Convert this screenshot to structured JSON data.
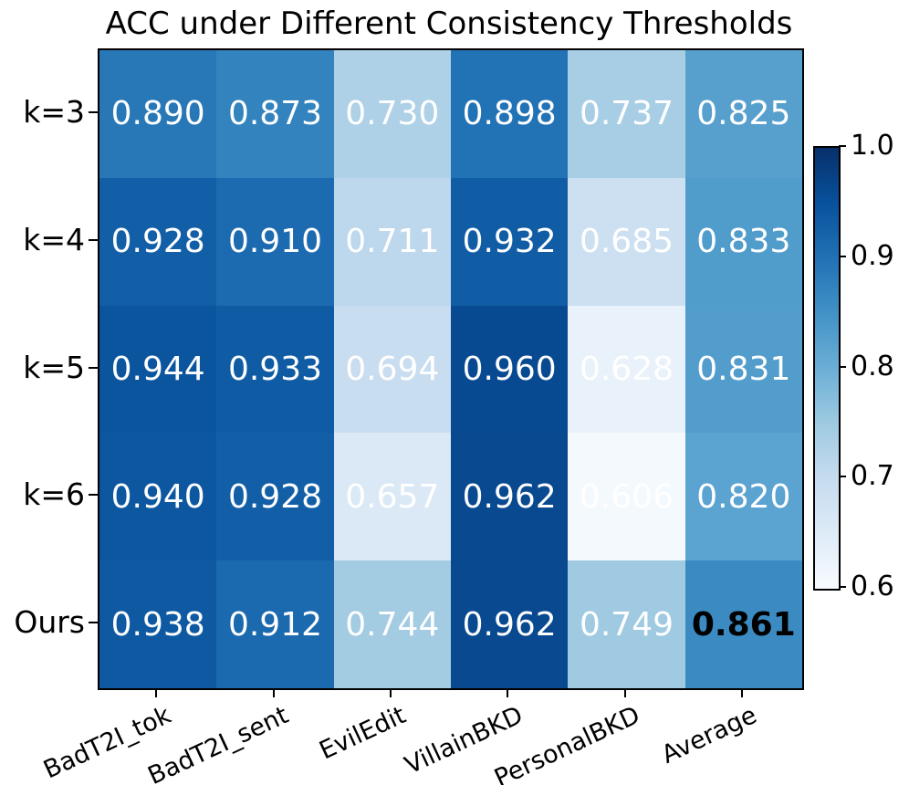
{
  "chart_data": {
    "type": "heatmap",
    "title": "ACC under Different Consistency Thresholds",
    "rows": [
      "k=3",
      "k=4",
      "k=5",
      "k=6",
      "Ours"
    ],
    "columns": [
      "BadT2I_tok",
      "BadT2I_sent",
      "EvilEdit",
      "VillainBKD",
      "PersonalBKD",
      "Average"
    ],
    "values": [
      [
        0.89,
        0.873,
        0.73,
        0.898,
        0.737,
        0.825
      ],
      [
        0.928,
        0.91,
        0.711,
        0.932,
        0.685,
        0.833
      ],
      [
        0.944,
        0.933,
        0.694,
        0.96,
        0.628,
        0.831
      ],
      [
        0.94,
        0.928,
        0.657,
        0.962,
        0.606,
        0.82
      ],
      [
        0.938,
        0.912,
        0.744,
        0.962,
        0.749,
        0.861
      ]
    ],
    "value_precision": 3,
    "annotation_color": "#ffffff",
    "highlight_cell": {
      "row_index": 4,
      "col_index": 5,
      "bold": true,
      "text_color": "#000000"
    },
    "colormap": "Blues",
    "vmin": 0.6,
    "vmax": 1.0,
    "colorbar_ticks": [
      "1.0",
      "0.9",
      "0.8",
      "0.7",
      "0.6"
    ],
    "colorbar_position": "right",
    "axis_color": "#000000",
    "background_color": "#ffffff"
  }
}
